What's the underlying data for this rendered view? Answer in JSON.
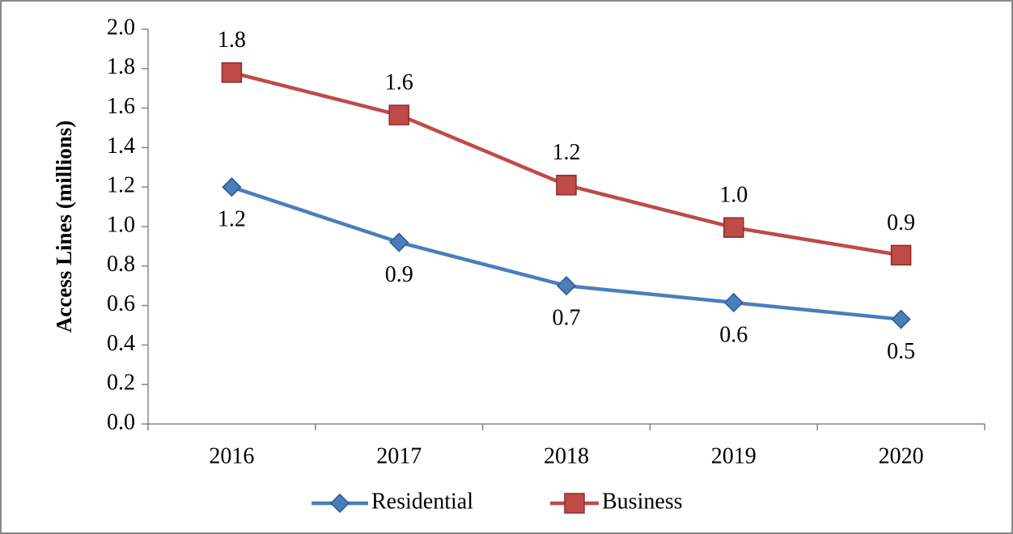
{
  "chart_data": {
    "type": "line",
    "ylabel": "Access Lines (millions)",
    "categories": [
      "2016",
      "2017",
      "2018",
      "2019",
      "2020"
    ],
    "series": [
      {
        "name": "Residential",
        "color": "#4a7ebb",
        "marker": "diamond",
        "values": [
          1.2,
          0.92,
          0.7,
          0.615,
          0.53
        ],
        "value_labels": [
          "1.2",
          "0.9",
          "0.7",
          "0.6",
          "0.5"
        ]
      },
      {
        "name": "Business",
        "color": "#be4b48",
        "marker": "square",
        "values": [
          1.78,
          1.565,
          1.21,
          0.995,
          0.855
        ],
        "value_labels": [
          "1.8",
          "1.6",
          "1.2",
          "1.0",
          "0.9"
        ]
      }
    ],
    "ylim": [
      0,
      2
    ],
    "yticks": [
      {
        "value": 0,
        "label": "0.0"
      },
      0.2,
      0.4,
      0.6,
      0.8,
      {
        "value": 1,
        "label": "1.0"
      },
      1.2,
      1.4,
      1.6,
      1.8,
      {
        "value": 2,
        "label": "2.0"
      }
    ],
    "legend": "bottom"
  }
}
